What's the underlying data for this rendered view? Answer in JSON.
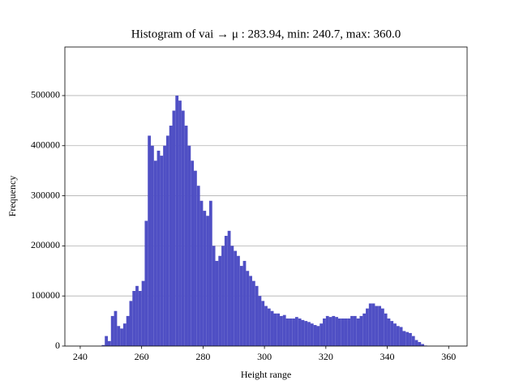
{
  "chart_data": {
    "type": "histogram",
    "title": "Histogram of vai → μ : 283.94, min: 240.7, max: 360.0",
    "x_label": "Height range",
    "y_label": "Frequency",
    "color": "#4f4fc4",
    "grid": true,
    "xlim": [
      235,
      366
    ],
    "ylim": [
      0,
      597000
    ],
    "xticks": [
      240,
      260,
      280,
      300,
      320,
      340,
      360
    ],
    "yticks": [
      0,
      100000,
      200000,
      300000,
      400000,
      500000
    ],
    "bins": [
      240,
      241,
      242,
      243,
      244,
      245,
      246,
      247,
      248,
      249,
      250,
      251,
      252,
      253,
      254,
      255,
      256,
      257,
      258,
      259,
      260,
      261,
      262,
      263,
      264,
      265,
      266,
      267,
      268,
      269,
      270,
      271,
      272,
      273,
      274,
      275,
      276,
      277,
      278,
      279,
      280,
      281,
      282,
      283,
      284,
      285,
      286,
      287,
      288,
      289,
      290,
      291,
      292,
      293,
      294,
      295,
      296,
      297,
      298,
      299,
      300,
      301,
      302,
      303,
      304,
      305,
      306,
      307,
      308,
      309,
      310,
      311,
      312,
      313,
      314,
      315,
      316,
      317,
      318,
      319,
      320,
      321,
      322,
      323,
      324,
      325,
      326,
      327,
      328,
      329,
      330,
      331,
      332,
      333,
      334,
      335,
      336,
      337,
      338,
      339,
      340,
      341,
      342,
      343,
      344,
      345,
      346,
      347,
      348,
      349,
      350,
      351,
      352,
      353,
      354,
      355,
      356,
      357,
      358,
      359,
      360
    ],
    "values": [
      0,
      0,
      0,
      0,
      0,
      0,
      0,
      2000,
      20000,
      10000,
      60000,
      70000,
      40000,
      35000,
      45000,
      60000,
      90000,
      110000,
      120000,
      110000,
      130000,
      250000,
      420000,
      400000,
      370000,
      390000,
      380000,
      400000,
      420000,
      440000,
      470000,
      500000,
      490000,
      470000,
      440000,
      400000,
      370000,
      350000,
      320000,
      290000,
      270000,
      260000,
      290000,
      200000,
      170000,
      180000,
      200000,
      220000,
      230000,
      200000,
      190000,
      180000,
      160000,
      170000,
      150000,
      140000,
      130000,
      120000,
      100000,
      90000,
      80000,
      75000,
      70000,
      65000,
      65000,
      60000,
      62000,
      55000,
      55000,
      55000,
      58000,
      55000,
      52000,
      50000,
      48000,
      45000,
      42000,
      40000,
      45000,
      55000,
      60000,
      58000,
      60000,
      58000,
      55000,
      55000,
      55000,
      55000,
      60000,
      60000,
      55000,
      60000,
      65000,
      75000,
      85000,
      85000,
      80000,
      80000,
      75000,
      65000,
      55000,
      50000,
      45000,
      40000,
      38000,
      30000,
      28000,
      26000,
      20000,
      12000,
      8000,
      4000,
      1000,
      0,
      0,
      0,
      0,
      0,
      0,
      0
    ]
  }
}
